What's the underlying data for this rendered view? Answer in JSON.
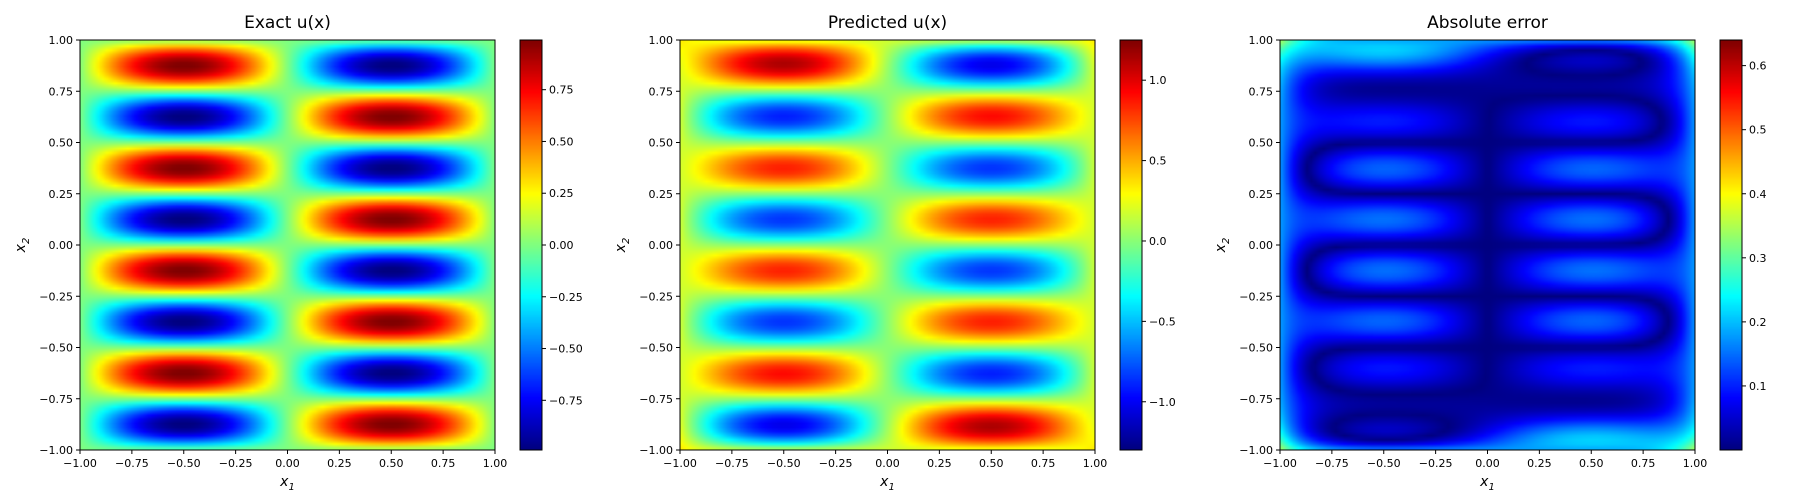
{
  "chart_data": [
    {
      "type": "heatmap",
      "title": "Exact u(x)",
      "field": "exact",
      "xlabel": "x1",
      "ylabel": "x2",
      "xlim": [
        -1,
        1
      ],
      "ylim": [
        -1,
        1
      ],
      "xticks": [
        "−1.00",
        "−0.75",
        "−0.50",
        "−0.25",
        "0.00",
        "0.25",
        "0.50",
        "0.75",
        "1.00"
      ],
      "yticks": [
        "−1.00",
        "−0.75",
        "−0.50",
        "−0.25",
        "0.00",
        "0.25",
        "0.50",
        "0.75",
        "1.00"
      ],
      "colormap": "jet",
      "colorbar": {
        "range": [
          -0.99,
          0.99
        ],
        "ticks": [
          {
            "value": -0.75,
            "label": "−0.75"
          },
          {
            "value": -0.5,
            "label": "−0.50"
          },
          {
            "value": -0.25,
            "label": "−0.25"
          },
          {
            "value": 0.0,
            "label": "0.00"
          },
          {
            "value": 0.25,
            "label": "0.25"
          },
          {
            "value": 0.5,
            "label": "0.50"
          },
          {
            "value": 0.75,
            "label": "0.75"
          }
        ]
      },
      "grid": false
    },
    {
      "type": "heatmap",
      "title": "Predicted u(x)",
      "field": "predicted",
      "xlabel": "x1",
      "ylabel": "x2",
      "xlim": [
        -1,
        1
      ],
      "ylim": [
        -1,
        1
      ],
      "xticks": [
        "−1.00",
        "−0.75",
        "−0.50",
        "−0.25",
        "0.00",
        "0.25",
        "0.50",
        "0.75",
        "1.00"
      ],
      "yticks": [
        "−1.00",
        "−0.75",
        "−0.50",
        "−0.25",
        "0.00",
        "0.25",
        "0.50",
        "0.75",
        "1.00"
      ],
      "colormap": "jet",
      "colorbar": {
        "range": [
          -1.3,
          1.25
        ],
        "ticks": [
          {
            "value": -1.0,
            "label": "−1.0"
          },
          {
            "value": -0.5,
            "label": "−0.5"
          },
          {
            "value": 0.0,
            "label": "0.0"
          },
          {
            "value": 0.5,
            "label": "0.5"
          },
          {
            "value": 1.0,
            "label": "1.0"
          }
        ]
      },
      "grid": false
    },
    {
      "type": "heatmap",
      "title": "Absolute error",
      "field": "error",
      "xlabel": "x1",
      "ylabel": "x2",
      "xlim": [
        -1,
        1
      ],
      "ylim": [
        -1,
        1
      ],
      "xticks": [
        "−1.00",
        "−0.75",
        "−0.50",
        "−0.25",
        "0.00",
        "0.25",
        "0.50",
        "0.75",
        "1.00"
      ],
      "yticks": [
        "−1.00",
        "−0.75",
        "−0.50",
        "−0.25",
        "0.00",
        "0.25",
        "0.50",
        "0.75",
        "1.00"
      ],
      "colormap": "jet",
      "colorbar": {
        "range": [
          0.0,
          0.64
        ],
        "ticks": [
          {
            "value": 0.1,
            "label": "0.1"
          },
          {
            "value": 0.2,
            "label": "0.2"
          },
          {
            "value": 0.3,
            "label": "0.3"
          },
          {
            "value": 0.4,
            "label": "0.4"
          },
          {
            "value": 0.5,
            "label": "0.5"
          },
          {
            "value": 0.6,
            "label": "0.6"
          }
        ]
      },
      "grid": false
    }
  ]
}
